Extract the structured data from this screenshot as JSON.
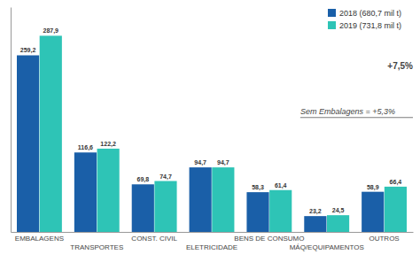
{
  "chart_data": {
    "type": "bar",
    "categories": [
      "EMBALAGENS",
      "TRANSPORTES",
      "CONST. CIVIL",
      "ELETRICIDADE",
      "BENS DE CONSUMO",
      "MÁQ/EQUIPAMENTOS",
      "OUTROS"
    ],
    "series": [
      {
        "name": "2018 (680,7 mil t)",
        "color": "#1a5fa8",
        "values": [
          259.2,
          116.6,
          69.8,
          94.7,
          58.3,
          23.2,
          58.9
        ],
        "value_labels": [
          "259,2",
          "116,6",
          "69,8",
          "94,7",
          "58,3",
          "23,2",
          "58,9"
        ]
      },
      {
        "name": "2019 (731,8 mil t)",
        "color": "#2ec4b6",
        "values": [
          287.9,
          122.2,
          74.7,
          94.7,
          61.4,
          24.5,
          66.4
        ],
        "value_labels": [
          "287,9",
          "122,2",
          "74,7",
          "94,7",
          "61,4",
          "24,5",
          "66,4"
        ]
      }
    ],
    "annotations": [
      "+7,5%",
      "Sem Embalagens = +5,3%"
    ],
    "ylim": [
      0,
      330
    ],
    "grid": false,
    "legend": "upper right",
    "data_labels": true,
    "tick_labels": "x"
  }
}
